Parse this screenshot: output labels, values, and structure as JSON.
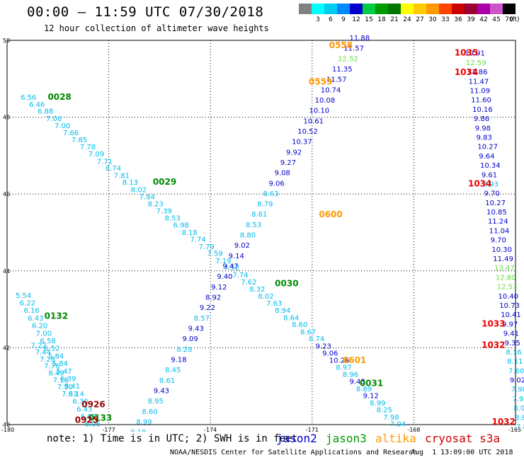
{
  "title": "00:00 – 11:59 UTC 07/30/2018",
  "subtitle": "12 hour collection of altimeter wave heights",
  "legend": {
    "unit": "(ft)",
    "items": [
      {
        "label": "",
        "color": "#808080"
      },
      {
        "label": "3",
        "color": "#00ffff"
      },
      {
        "label": "6",
        "color": "#00ccee"
      },
      {
        "label": "9",
        "color": "#0088ff"
      },
      {
        "label": "12",
        "color": "#0000cc"
      },
      {
        "label": "15",
        "color": "#00cc44"
      },
      {
        "label": "18",
        "color": "#009900"
      },
      {
        "label": "21",
        "color": "#007700"
      },
      {
        "label": "24",
        "color": "#ffff00"
      },
      {
        "label": "27",
        "color": "#ffcc00"
      },
      {
        "label": "30",
        "color": "#ff9900"
      },
      {
        "label": "33",
        "color": "#ff4400"
      },
      {
        "label": "36",
        "color": "#cc0000"
      },
      {
        "label": "39",
        "color": "#990033"
      },
      {
        "label": "42",
        "color": "#aa00aa"
      },
      {
        "label": "45",
        "color": "#cc55cc"
      },
      {
        "label": "70",
        "color": "#000000"
      }
    ]
  },
  "satellites": [
    {
      "name": "jason2",
      "color": "#0000cc"
    },
    {
      "name": "jason3",
      "color": "#009900"
    },
    {
      "name": "altika",
      "color": "#ff9900"
    },
    {
      "name": "cryosat s3a",
      "color": "#cc0000"
    }
  ],
  "note": "note: 1) Time is in UTC; 2) SWH is in feet",
  "credit": "NOAA/NESDIS Center for Satellite Applications and Research",
  "stamp": "Aug  1 13:09:00 UTC 2018",
  "chart_data": {
    "type": "scatter",
    "xlim": [
      -180,
      -165
    ],
    "ylim": [
      40,
      50
    ],
    "xticks": [
      -180,
      -177,
      -174,
      -171,
      -168,
      -165
    ],
    "yticks": [
      40,
      42,
      44,
      46,
      48,
      50
    ],
    "grid": true,
    "colors": {
      "lb": "#00bbee",
      "db": "#0000cc",
      "gr": "#66dd44",
      "or": "#ff9900",
      "dg": "#008800",
      "rd": "#ee0000",
      "dr": "#990000"
    },
    "points": [
      {
        "x": -179.6,
        "y": 48.45,
        "t": "6.56",
        "c": "lb"
      },
      {
        "x": -179.35,
        "y": 48.27,
        "t": "6.46",
        "c": "lb"
      },
      {
        "x": -179.1,
        "y": 48.09,
        "t": "6.88",
        "c": "lb"
      },
      {
        "x": -178.85,
        "y": 47.9,
        "t": "7.06",
        "c": "lb"
      },
      {
        "x": -178.6,
        "y": 47.72,
        "t": "7.00",
        "c": "lb"
      },
      {
        "x": -178.35,
        "y": 47.53,
        "t": "7.66",
        "c": "lb"
      },
      {
        "x": -178.1,
        "y": 47.35,
        "t": "7.85",
        "c": "lb"
      },
      {
        "x": -177.85,
        "y": 47.16,
        "t": "7.78",
        "c": "lb"
      },
      {
        "x": -177.6,
        "y": 46.98,
        "t": "7.09",
        "c": "lb"
      },
      {
        "x": -177.35,
        "y": 46.79,
        "t": "7.71",
        "c": "lb"
      },
      {
        "x": -177.1,
        "y": 46.61,
        "t": "8.74",
        "c": "lb"
      },
      {
        "x": -176.85,
        "y": 46.42,
        "t": "7.81",
        "c": "lb"
      },
      {
        "x": -176.6,
        "y": 46.24,
        "t": "8.13",
        "c": "lb"
      },
      {
        "x": -176.35,
        "y": 46.05,
        "t": "8.02",
        "c": "lb"
      },
      {
        "x": -176.1,
        "y": 45.87,
        "t": "7.84",
        "c": "lb"
      },
      {
        "x": -175.85,
        "y": 45.68,
        "t": "8.23",
        "c": "lb"
      },
      {
        "x": -175.6,
        "y": 45.5,
        "t": "7.39",
        "c": "lb"
      },
      {
        "x": -175.35,
        "y": 45.31,
        "t": "8.53",
        "c": "lb"
      },
      {
        "x": -175.1,
        "y": 45.13,
        "t": "6.98",
        "c": "lb"
      },
      {
        "x": -174.85,
        "y": 44.94,
        "t": "8.18",
        "c": "lb"
      },
      {
        "x": -174.6,
        "y": 44.76,
        "t": "7.74",
        "c": "lb"
      },
      {
        "x": -174.35,
        "y": 44.57,
        "t": "7.79",
        "c": "lb"
      },
      {
        "x": -174.1,
        "y": 44.39,
        "t": "7.59",
        "c": "lb"
      },
      {
        "x": -173.85,
        "y": 44.2,
        "t": "7.19",
        "c": "lb"
      },
      {
        "x": -173.6,
        "y": 44.02,
        "t": "7.52",
        "c": "lb"
      },
      {
        "x": -173.35,
        "y": 43.83,
        "t": "7.74",
        "c": "lb"
      },
      {
        "x": -173.1,
        "y": 43.65,
        "t": "7.62",
        "c": "lb"
      },
      {
        "x": -172.85,
        "y": 43.46,
        "t": "8.32",
        "c": "lb"
      },
      {
        "x": -172.6,
        "y": 43.28,
        "t": "8.02",
        "c": "lb"
      },
      {
        "x": -172.35,
        "y": 43.09,
        "t": "7.63",
        "c": "lb"
      },
      {
        "x": -172.1,
        "y": 42.91,
        "t": "8.94",
        "c": "lb"
      },
      {
        "x": -171.85,
        "y": 42.72,
        "t": "8.64",
        "c": "lb"
      },
      {
        "x": -171.6,
        "y": 42.54,
        "t": "8.60",
        "c": "lb"
      },
      {
        "x": -171.35,
        "y": 42.35,
        "t": "8.67",
        "c": "lb"
      },
      {
        "x": -171.1,
        "y": 42.17,
        "t": "8.74",
        "c": "lb"
      },
      {
        "x": -170.9,
        "y": 41.98,
        "t": "9.23",
        "c": "db"
      },
      {
        "x": -170.7,
        "y": 41.8,
        "t": "9.06",
        "c": "db"
      },
      {
        "x": -170.5,
        "y": 41.61,
        "t": "10.26",
        "c": "db"
      },
      {
        "x": -170.3,
        "y": 41.43,
        "t": "8.97",
        "c": "lb"
      },
      {
        "x": -170.1,
        "y": 41.24,
        "t": "8.96",
        "c": "lb"
      },
      {
        "x": -169.9,
        "y": 41.06,
        "t": "9.43",
        "c": "db"
      },
      {
        "x": -169.7,
        "y": 40.87,
        "t": "8.89",
        "c": "lb"
      },
      {
        "x": -169.5,
        "y": 40.69,
        "t": "9.12",
        "c": "db"
      },
      {
        "x": -169.3,
        "y": 40.5,
        "t": "8.99",
        "c": "lb"
      },
      {
        "x": -169.1,
        "y": 40.32,
        "t": "8.25",
        "c": "lb"
      },
      {
        "x": -168.9,
        "y": 40.13,
        "t": "7.98",
        "c": "lb"
      },
      {
        "x": -168.7,
        "y": 39.95,
        "t": "7.04",
        "c": "lb"
      }
    ],
    "tags": [
      {
        "x": -178.8,
        "y": 48.45,
        "t": "0028",
        "c": "dg"
      },
      {
        "x": -175.7,
        "y": 46.24,
        "t": "0029",
        "c": "dg"
      },
      {
        "x": -172.1,
        "y": 43.6,
        "t": "0030",
        "c": "dg"
      },
      {
        "x": -169.6,
        "y": 41.0,
        "t": "0031",
        "c": "dg"
      },
      {
        "x": -170.1,
        "y": 41.6,
        "t": "0601",
        "c": "or"
      },
      {
        "x": -170.8,
        "y": 45.4,
        "t": "0600",
        "c": "or"
      },
      {
        "x": -171.1,
        "y": 48.85,
        "t": "0559",
        "c": "or"
      },
      {
        "x": -170.5,
        "y": 49.8,
        "t": "0558",
        "c": "or"
      },
      {
        "x": -178.9,
        "y": 42.75,
        "t": "0132",
        "c": "dg"
      },
      {
        "x": -177.6,
        "y": 40.1,
        "t": "0133",
        "c": "dg"
      },
      {
        "x": -177.8,
        "y": 40.45,
        "t": "0926",
        "c": "dr"
      },
      {
        "x": -178.0,
        "y": 40.05,
        "t": "0925",
        "c": "dr"
      },
      {
        "x": -166.8,
        "y": 49.6,
        "t": "1035",
        "c": "rd"
      },
      {
        "x": -166.8,
        "y": 49.1,
        "t": "1034",
        "c": "rd"
      },
      {
        "x": -166.4,
        "y": 46.2,
        "t": "1034",
        "c": "rd"
      },
      {
        "x": -166.0,
        "y": 42.55,
        "t": "1033",
        "c": "rd"
      },
      {
        "x": -166.0,
        "y": 42.0,
        "t": "1032",
        "c": "rd"
      },
      {
        "x": -165.7,
        "y": 40.0,
        "t": "1032",
        "c": "rd"
      }
    ],
    "tracks": [
      {
        "x0": -169.9,
        "y0": 50.0,
        "dx": 0.17,
        "dy": -0.27,
        "values": [
          "11.88",
          "11.57",
          "12.52",
          "11.35",
          "11.57",
          "10.74",
          "10.08",
          "10.10",
          "10.61",
          "10.52",
          "10.37",
          "9.92",
          "9.27",
          "9.08",
          "9.06",
          "8.63",
          "8.79",
          "8.61",
          "8.53",
          "8.80",
          "9.02",
          "9.14",
          "9.47",
          "9.40",
          "9.12",
          "8.92",
          "9.22",
          "8.57",
          "9.43",
          "9.09",
          "8.28",
          "9.18",
          "8.45",
          "8.61",
          "9.43",
          "8.95",
          "8.60",
          "8.99",
          "8.18",
          "8.46",
          "8.36",
          "5.86"
        ],
        "colors": [
          "db",
          "db",
          "gr",
          "db",
          "db",
          "db",
          "db",
          "db",
          "db",
          "db",
          "db",
          "db",
          "db",
          "db",
          "db",
          "lb",
          "lb",
          "lb",
          "lb",
          "lb",
          "db",
          "db",
          "db",
          "db",
          "db",
          "db",
          "db",
          "lb",
          "db",
          "db",
          "lb",
          "db",
          "lb",
          "lb",
          "db",
          "lb",
          "lb",
          "lb",
          "lb",
          "lb",
          "lb",
          "lb"
        ],
        "mode": "reverse"
      },
      {
        "x0": -166.5,
        "y0": 49.6,
        "dx": 0.038,
        "dy": -0.243,
        "values": [
          "10.91",
          "12.59",
          "11.86",
          "11.47",
          "11.09",
          "11.60",
          "10.16",
          "9.86",
          "9.98",
          "9.83",
          "10.27",
          "9.64",
          "10.34",
          "9.61",
          "8.93",
          "9.70",
          "10.27",
          "10.85",
          "11.24",
          "11.04",
          "9.70",
          "10.30",
          "11.49",
          "13.47",
          "12.80",
          "12.53",
          "10.40",
          "10.73",
          "10.41",
          "9.97",
          "9.41",
          "9.35",
          "8.16",
          "8.11",
          "7.60",
          "9.02",
          "7.98",
          "7.98",
          "8.06",
          "8.88",
          "7.83",
          "7.06",
          "6.24",
          "6.43"
        ],
        "colors": [
          "db",
          "gr",
          "db",
          "db",
          "db",
          "db",
          "db",
          "db",
          "db",
          "db",
          "db",
          "db",
          "db",
          "db",
          "lb",
          "db",
          "db",
          "db",
          "db",
          "db",
          "db",
          "db",
          "db",
          "gr",
          "gr",
          "gr",
          "db",
          "db",
          "db",
          "db",
          "db",
          "db",
          "lb",
          "lb",
          "lb",
          "db",
          "lb",
          "lb",
          "lb",
          "lb",
          "lb",
          "lb",
          "lb",
          "lb"
        ],
        "mode": "plain"
      },
      {
        "x0": -179.75,
        "y0": 43.3,
        "dx": 0.12,
        "dy": -0.197,
        "values": [
          "5.54",
          "6.22",
          "6.16",
          "6.43",
          "6.20",
          "7.00",
          "6.58",
          "6.52",
          "5.84",
          "5.84",
          "5.47",
          "6.39",
          "8.41",
          "6.14",
          "6.30",
          "6.43",
          "6.07",
          "6.06"
        ],
        "colors": [
          "lb",
          "lb",
          "lb",
          "lb",
          "lb",
          "lb",
          "lb",
          "lb",
          "lb",
          "lb",
          "lb",
          "lb",
          "lb",
          "lb",
          "lb",
          "lb",
          "lb",
          "lb"
        ],
        "mode": "plain"
      },
      {
        "x0": -179.3,
        "y0": 42.0,
        "dx": 0.13,
        "dy": -0.18,
        "values": [
          "7.22",
          "7.44",
          "7.26",
          "7.76",
          "8.49",
          "7.18",
          "7.50",
          "7.83"
        ],
        "colors": [
          "lb",
          "lb",
          "lb",
          "lb",
          "lb",
          "lb",
          "lb",
          "lb"
        ],
        "mode": "plain"
      }
    ]
  }
}
